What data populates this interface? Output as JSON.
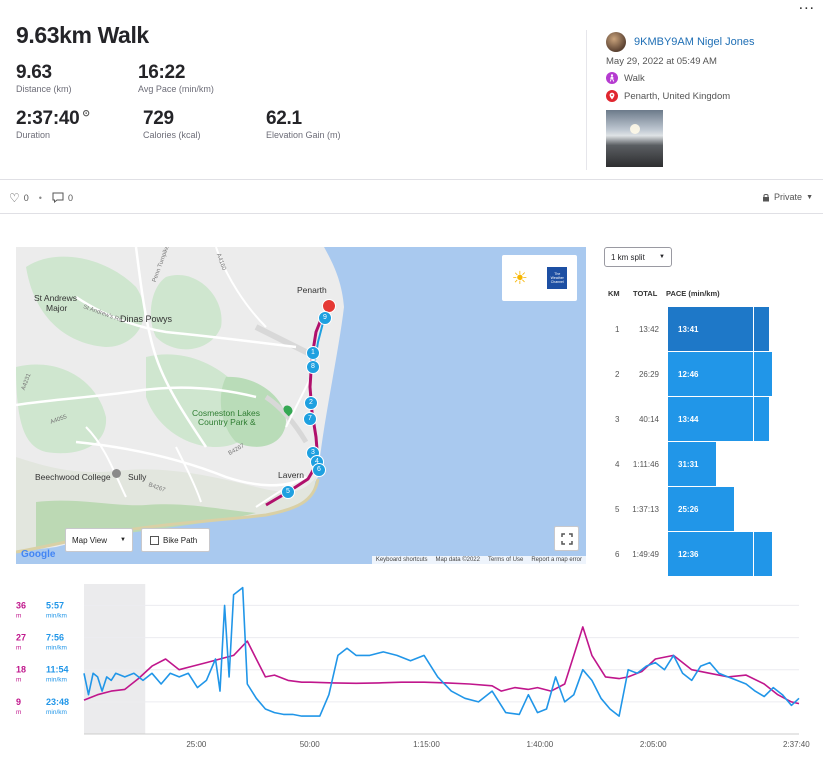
{
  "header": {
    "menu_label": "...",
    "title": "9.63km Walk",
    "stats": [
      {
        "value": "9.63",
        "label": "Distance (km)"
      },
      {
        "value": "16:22",
        "label": "Avg Pace (min/km)"
      },
      {
        "value": "2:37:40",
        "label": "Duration"
      },
      {
        "value": "729",
        "label": "Calories (kcal)"
      },
      {
        "value": "62.1",
        "label": "Elevation Gain (m)"
      }
    ]
  },
  "athlete": {
    "name": "9KMBY9AM Nigel Jones",
    "date": "May 29, 2022 at 05:49 AM",
    "activity_type": "Walk",
    "location": "Penarth, United Kingdom"
  },
  "social": {
    "likes": "0",
    "comments": "0",
    "separator": "•",
    "privacy": "Private"
  },
  "map": {
    "places": [
      "Penarth",
      "St Andrews",
      "Major",
      "Dinas Powys",
      "Cosmeston Lakes",
      "Country Park &",
      "Sully",
      "Beechwood College",
      "Lavern",
      "A4055",
      "A4231",
      "B4267",
      "St Andrew's Rd",
      "A4160",
      "Penn Turnpike",
      "B4267"
    ],
    "markers": [
      "9",
      "1",
      "8",
      "2",
      "7",
      "3",
      "4",
      "6",
      "5"
    ],
    "view_button": "Map View",
    "bike_path_label": "Bike Path",
    "attribution": {
      "google": "Google",
      "shortcuts": "Keyboard shortcuts",
      "map_data": "Map data ©2022",
      "terms": "Terms of Use",
      "report": "Report a map error"
    },
    "weather_channel_label": "The Weather Channel"
  },
  "splits": {
    "select_label": "1 km split",
    "columns": [
      "KM",
      "TOTAL",
      "PACE (min/km)"
    ],
    "rows": [
      {
        "km": "1",
        "total": "13:42",
        "pace": "13:41",
        "pace_value": 13.68
      },
      {
        "km": "2",
        "total": "26:29",
        "pace": "12:46",
        "pace_value": 12.77
      },
      {
        "km": "3",
        "total": "40:14",
        "pace": "13:44",
        "pace_value": 13.73
      },
      {
        "km": "4",
        "total": "1:11:46",
        "pace": "31:31",
        "pace_value": 31.52
      },
      {
        "km": "5",
        "total": "1:37:13",
        "pace": "25:26",
        "pace_value": 25.43
      },
      {
        "km": "6",
        "total": "1:49:49",
        "pace": "12:36",
        "pace_value": 12.6
      }
    ]
  },
  "chart_data": {
    "type": "line",
    "x_tick_labels": [
      "25:00",
      "50:00",
      "1:15:00",
      "1:40:00",
      "2:05:00",
      "2:37:40"
    ],
    "x_ticks_minutes": [
      25,
      50,
      75,
      100,
      125,
      157.67
    ],
    "xlim_minutes": [
      0,
      157.67
    ],
    "elevation_axis": {
      "labels": [
        "36",
        "27",
        "18",
        "9"
      ],
      "unit": "m",
      "color": "#c0168c"
    },
    "pace_axis": {
      "labels": [
        "5:57",
        "7:56",
        "11:54",
        "23:48"
      ],
      "unit": "min/km",
      "color": "#2196e8"
    },
    "shaded_region_minutes": [
      0,
      13.5
    ],
    "series": [
      {
        "key": "elevation",
        "color": "#c0168c",
        "x": [
          0,
          3,
          6,
          9,
          12,
          15,
          18,
          21,
          24,
          27,
          30,
          33,
          36,
          38,
          40,
          42,
          45,
          48,
          50,
          55,
          60,
          65,
          70,
          75,
          80,
          85,
          90,
          92,
          95,
          98,
          100,
          103,
          106,
          108,
          110,
          112,
          115,
          118,
          120,
          123,
          126,
          130,
          134,
          138,
          142,
          146,
          150,
          153,
          156,
          157.67
        ],
        "y": [
          9.5,
          11,
          12,
          12.5,
          15.5,
          19,
          21,
          18,
          19,
          20,
          21,
          22,
          26,
          21,
          16,
          16.5,
          15,
          14.5,
          14.5,
          14.3,
          14.2,
          14.3,
          14.5,
          14.5,
          14.3,
          14,
          13.5,
          12,
          13,
          12.5,
          13,
          12,
          14,
          22,
          30,
          22,
          16,
          15.5,
          16,
          17.5,
          21,
          22,
          18,
          17,
          16,
          16.5,
          14,
          11,
          9,
          8.5
        ]
      },
      {
        "key": "pace_line_position",
        "color": "#2196e8",
        "x": [
          0,
          1,
          2,
          3,
          4,
          5,
          6,
          7,
          9,
          11,
          13,
          15,
          17,
          19,
          21,
          23,
          25,
          27,
          29,
          30,
          31,
          32,
          33,
          34,
          35,
          36,
          38,
          40,
          42,
          44,
          46,
          48,
          50,
          52,
          54,
          56,
          58,
          60,
          63,
          66,
          69,
          72,
          75,
          78,
          81,
          84,
          87,
          90,
          93,
          96,
          98,
          100,
          102,
          104,
          106,
          108,
          110,
          112,
          114,
          116,
          118,
          120,
          122,
          124,
          126,
          128,
          130,
          132,
          134,
          136,
          138,
          140,
          142,
          144,
          146,
          148,
          150,
          152,
          154,
          156,
          157.67
        ],
        "y": [
          17,
          11,
          17,
          16,
          12,
          16,
          15,
          17,
          16,
          17,
          15,
          17,
          14,
          17,
          16,
          17,
          13,
          15,
          21,
          12,
          36,
          16,
          39,
          40,
          41,
          14,
          10,
          7,
          6,
          5.5,
          5.5,
          5,
          5,
          5,
          11,
          22,
          24,
          22,
          22,
          23,
          22,
          20.5,
          22,
          16,
          12,
          10,
          9,
          12,
          6,
          5.5,
          11,
          6,
          7,
          16,
          9,
          11,
          18,
          15,
          10,
          7,
          5,
          18,
          17,
          19,
          20,
          18,
          22,
          17,
          15,
          19,
          20,
          17,
          16,
          15,
          14,
          12,
          10.5,
          13,
          11,
          8,
          10
        ]
      }
    ]
  }
}
